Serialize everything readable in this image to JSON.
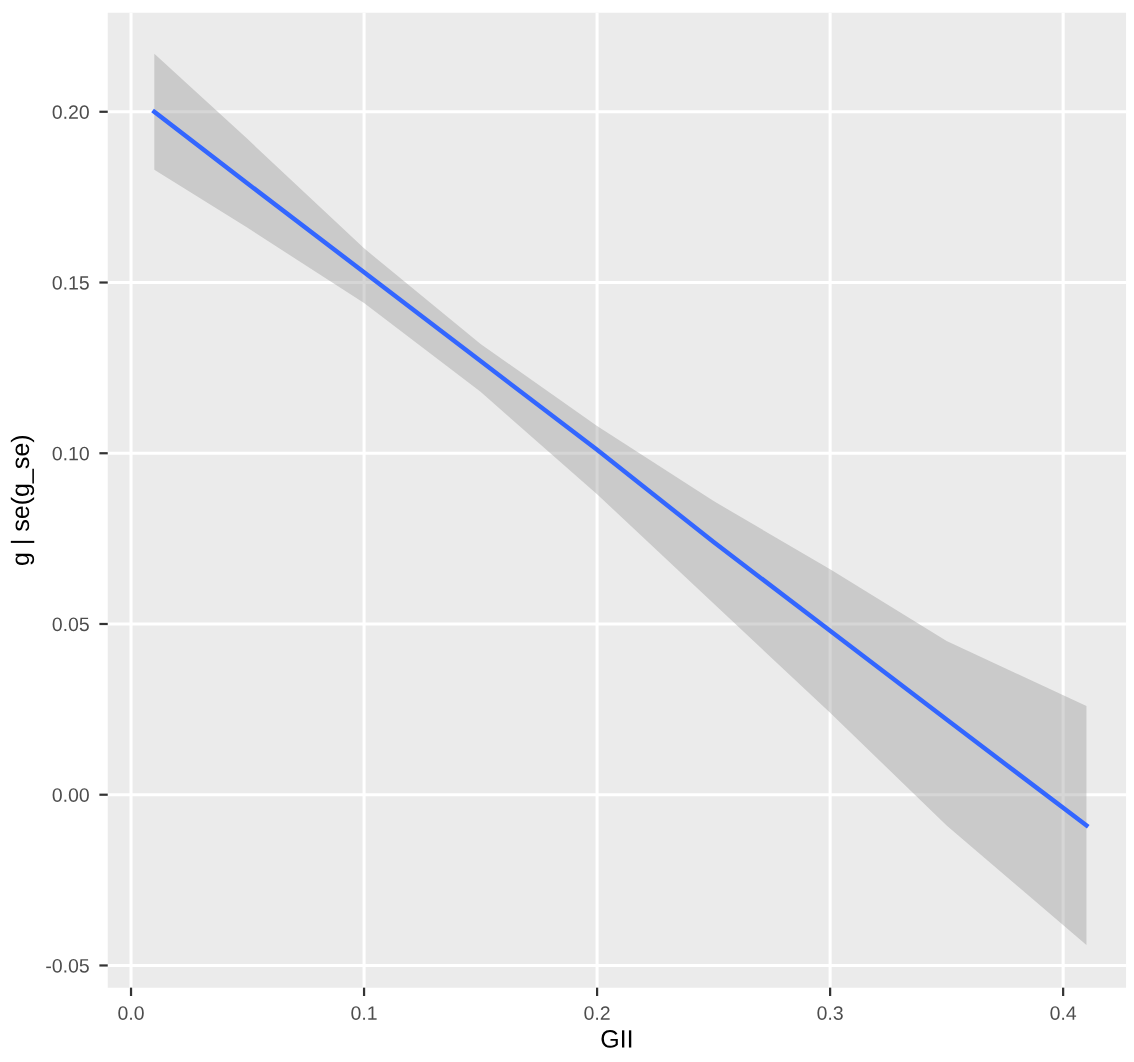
{
  "chart_data": {
    "type": "line",
    "xlabel": "GII",
    "ylabel": "g | se(g_se)",
    "x": [
      0.01,
      0.05,
      0.1,
      0.15,
      0.2,
      0.25,
      0.3,
      0.35,
      0.41
    ],
    "series": [
      {
        "color": "#3366ff",
        "values": [
          0.2,
          0.179,
          0.153,
          0.127,
          0.101,
          0.074,
          0.048,
          0.022,
          -0.009
        ],
        "lower": [
          0.183,
          0.166,
          0.144,
          0.118,
          0.088,
          0.056,
          0.024,
          -0.009,
          -0.044
        ],
        "upper": [
          0.217,
          0.192,
          0.16,
          0.132,
          0.108,
          0.086,
          0.066,
          0.045,
          0.026
        ]
      }
    ],
    "xlim": [
      -0.01,
      0.427
    ],
    "ylim": [
      -0.0565,
      0.229
    ],
    "xticks": [
      {
        "value": 0.0,
        "label": "0.0"
      },
      0.1,
      0.2,
      0.3,
      0.4
    ],
    "yticks": [
      -0.05,
      {
        "value": 0.0,
        "label": "0.00"
      },
      0.05,
      {
        "value": 0.1,
        "label": "0.10"
      },
      0.15,
      {
        "value": 0.2,
        "label": "0.20"
      }
    ],
    "grid": true,
    "marker": "none",
    "line_style": "solid"
  }
}
